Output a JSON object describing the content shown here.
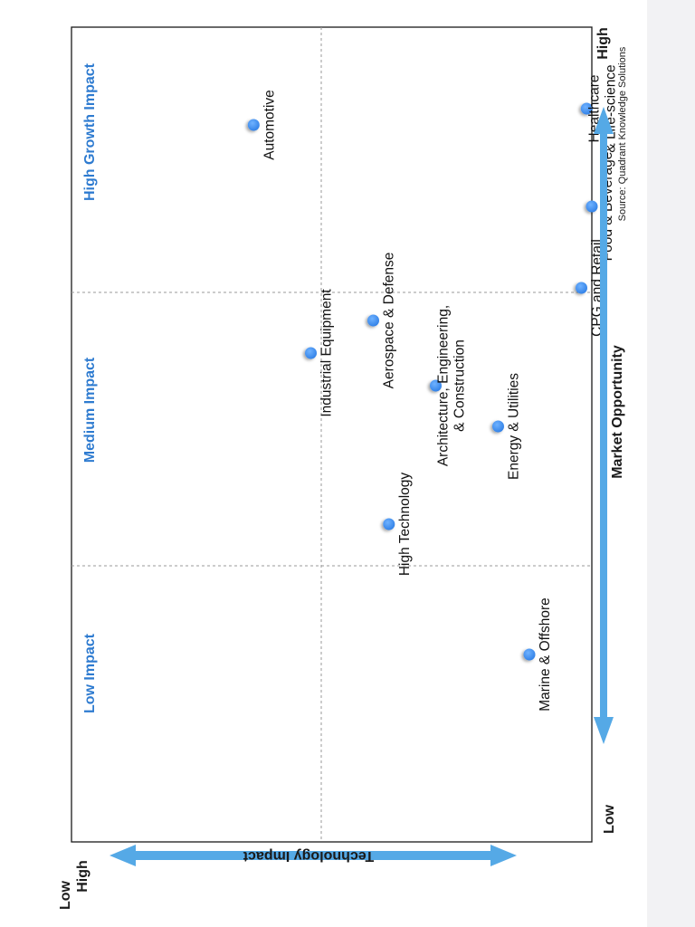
{
  "chart_data": {
    "type": "scatter",
    "x_axis": {
      "title": "Market Opportunity",
      "low_label": "Low",
      "high_label": "High"
    },
    "y_axis": {
      "title": "Technology Impact",
      "low_label": "Low",
      "high_label": "High"
    },
    "xlim": [
      0,
      100
    ],
    "ylim": [
      0,
      100
    ],
    "grid": "dashed quadrant dividers",
    "regions": [
      {
        "label": "Low Impact"
      },
      {
        "label": "Medium Impact"
      },
      {
        "label": "High Growth Impact"
      }
    ],
    "points": [
      {
        "name": "Automotive",
        "x": 88,
        "y": 35
      },
      {
        "name": "Healthcare\n& Life-science",
        "x": 90,
        "y": 99
      },
      {
        "name": "Food & Beverage",
        "x": 78,
        "y": 100
      },
      {
        "name": "CPG and Retail",
        "x": 68,
        "y": 98
      },
      {
        "name": "Aerospace & Defense",
        "x": 64,
        "y": 58
      },
      {
        "name": "Industrial Equipment",
        "x": 60,
        "y": 46
      },
      {
        "name": "Architecture, Engineering,\n& Construction",
        "x": 56,
        "y": 70
      },
      {
        "name": "Energy & Utilities",
        "x": 51,
        "y": 82
      },
      {
        "name": "High Technology",
        "x": 39,
        "y": 61
      },
      {
        "name": "Marine & Offshore",
        "x": 23,
        "y": 88
      }
    ],
    "source": "Source: Quadrant Knowledge Solutions",
    "colors": {
      "point": "#3d8cf0",
      "region_label": "#2e7bd0",
      "axis_arrow": "#55a9e6"
    }
  }
}
